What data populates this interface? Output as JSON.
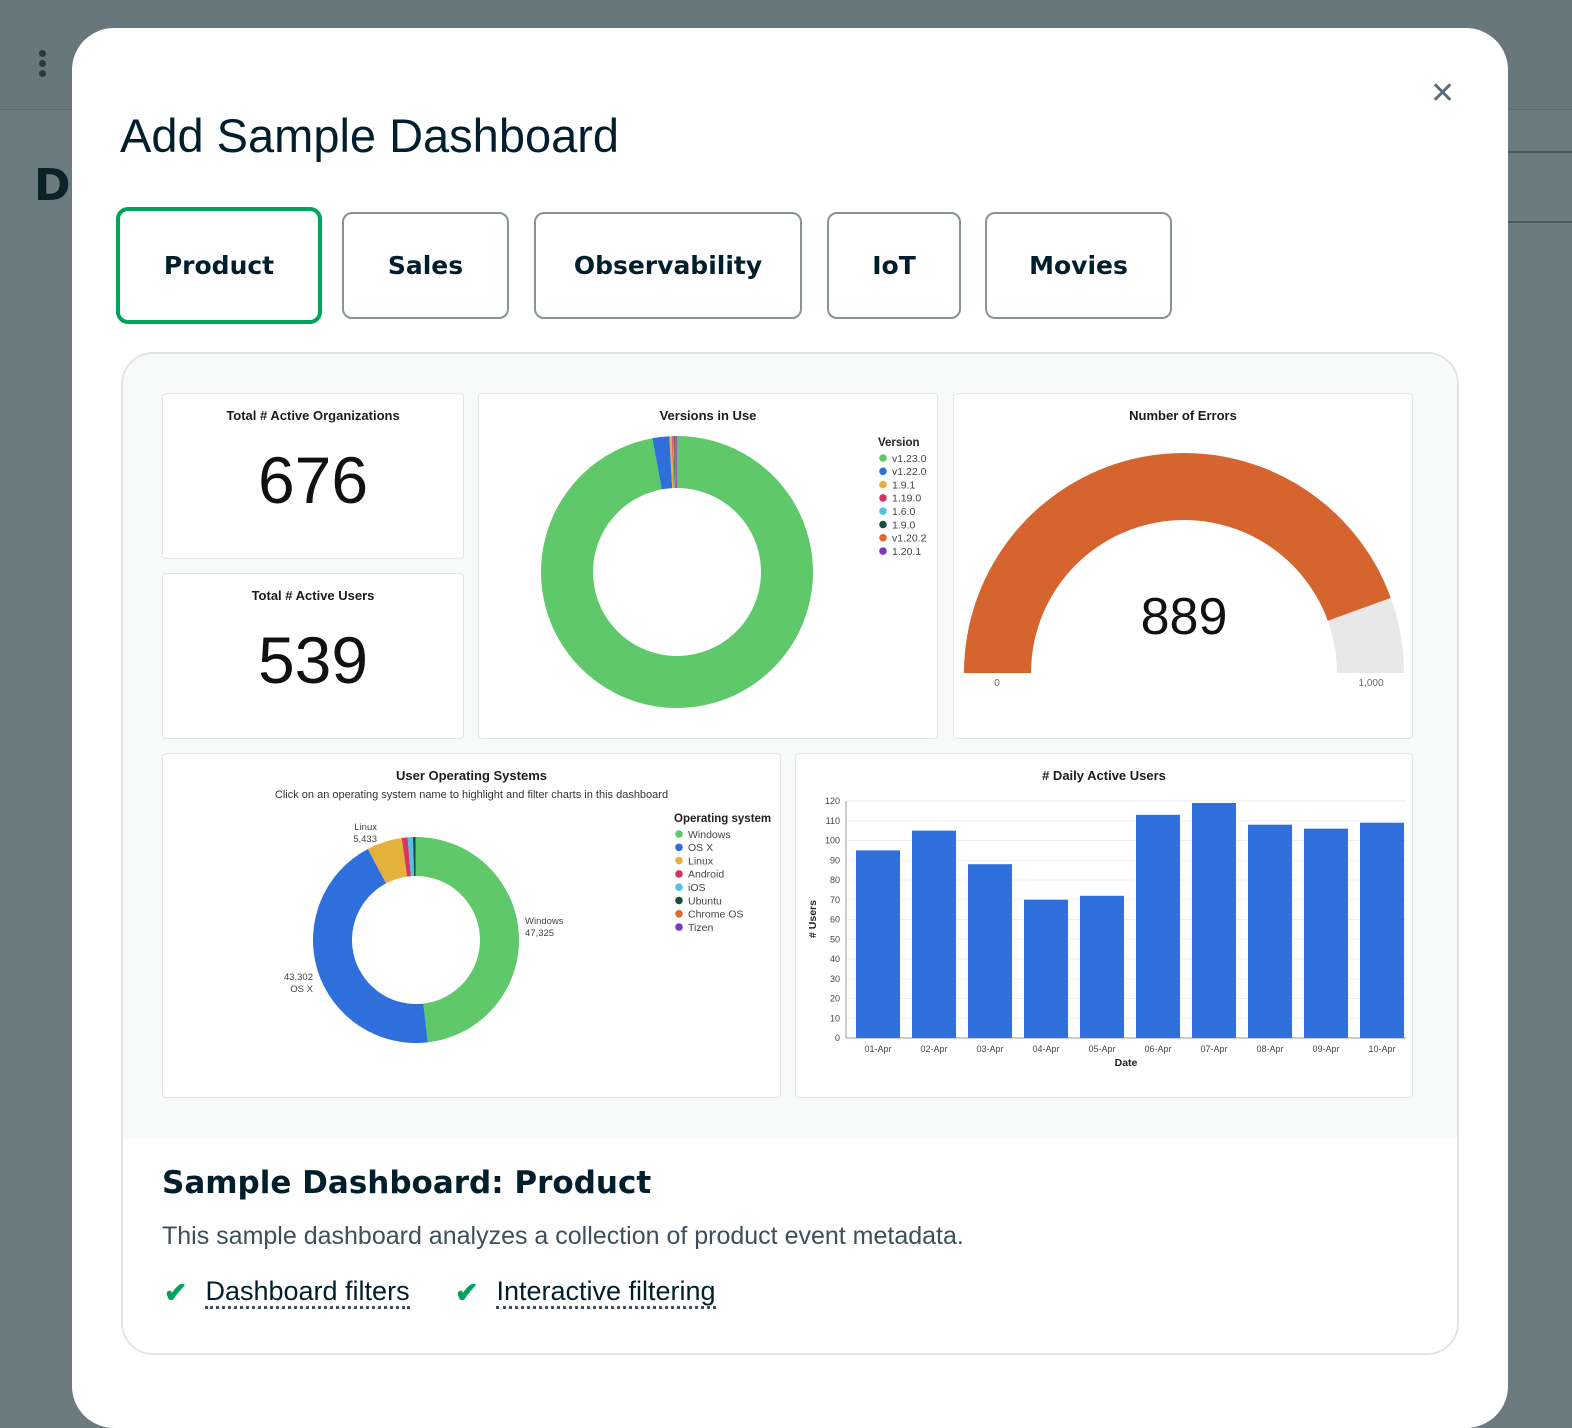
{
  "background": {
    "heading_fragment": "D"
  },
  "modal": {
    "title": "Add Sample Dashboard",
    "close_icon": "close-icon",
    "tabs": [
      {
        "label": "Product",
        "selected": true
      },
      {
        "label": "Sales",
        "selected": false
      },
      {
        "label": "Observability",
        "selected": false
      },
      {
        "label": "IoT",
        "selected": false
      },
      {
        "label": "Movies",
        "selected": false
      }
    ],
    "accent_color": "#00a35c",
    "description": {
      "title": "Sample Dashboard: Product",
      "text": "This sample dashboard analyzes a collection of product event metadata.",
      "features": [
        "Dashboard filters",
        "Interactive filtering"
      ]
    }
  },
  "chart_data": [
    {
      "type": "table",
      "title": "Total # Active Organizations",
      "value": "676"
    },
    {
      "type": "table",
      "title": "Total # Active Users",
      "value": "539"
    },
    {
      "type": "pie",
      "title": "Versions in Use",
      "legend_title": "Version",
      "legend_placement": "top-right",
      "categories": [
        "v1.23.0",
        "v1.22.0",
        "1.9.1",
        "1.19.0",
        "1.6.0",
        "1.9.0",
        "v1.20.2",
        "1.20.1"
      ],
      "values": [
        97,
        2,
        0.3,
        0.1,
        0.1,
        0.1,
        0.2,
        0.1
      ],
      "colors": [
        "#5ec86b",
        "#2f6fdc",
        "#e5b13d",
        "#d63465",
        "#56bfe6",
        "#17503c",
        "#df6a2f",
        "#7c3bbd"
      ]
    },
    {
      "type": "gauge",
      "title": "Number of Errors",
      "value": 889,
      "min": 0,
      "max": 1000,
      "value_label": "889",
      "min_label": "0",
      "max_label": "1,000",
      "color": "#d6642f"
    },
    {
      "type": "pie",
      "title": "User Operating Systems",
      "subtitle": "Click on an operating system name to highlight and filter charts in this dashboard",
      "legend_title": "Operating system",
      "legend_placement": "right",
      "categories": [
        "Windows",
        "OS X",
        "Linux",
        "Android",
        "iOS",
        "Ubuntu",
        "Chrome OS",
        "Tizen"
      ],
      "values": [
        47325,
        43302,
        5433,
        900,
        800,
        400,
        50,
        20
      ],
      "labels": {
        "Windows": "47,325",
        "OS X": "43,302",
        "Linux": "5,433"
      },
      "colors": [
        "#5ec86b",
        "#2f6fdc",
        "#e5b13d",
        "#d63465",
        "#56bfe6",
        "#17503c",
        "#df6a2f",
        "#7c3bbd"
      ]
    },
    {
      "type": "bar",
      "title": "# Daily Active Users",
      "xlabel": "Date",
      "ylabel": "# Users",
      "categories": [
        "01-Apr",
        "02-Apr",
        "03-Apr",
        "04-Apr",
        "05-Apr",
        "06-Apr",
        "07-Apr",
        "08-Apr",
        "09-Apr",
        "10-Apr"
      ],
      "values": [
        95,
        105,
        88,
        70,
        72,
        113,
        119,
        108,
        106,
        109
      ],
      "ylim": [
        0,
        120
      ],
      "yticks": [
        0,
        10,
        20,
        30,
        40,
        50,
        60,
        70,
        80,
        90,
        100,
        110,
        120
      ],
      "grid": true,
      "color": "#2f6fdc"
    }
  ]
}
